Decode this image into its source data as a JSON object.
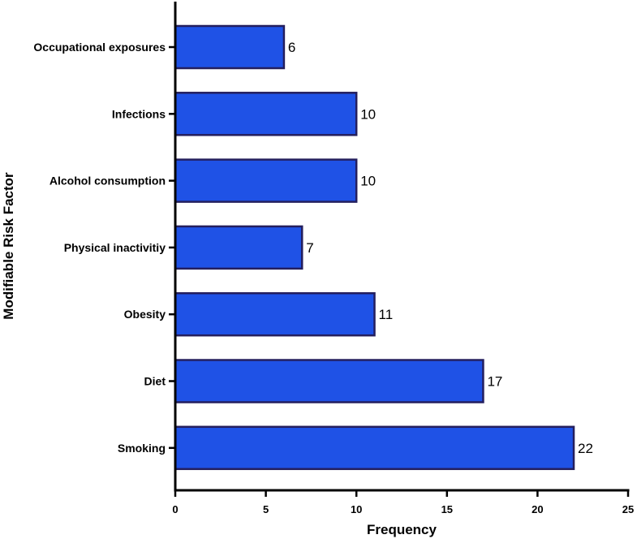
{
  "chart_data": {
    "type": "bar",
    "orientation": "horizontal",
    "categories": [
      "Occupational exposures",
      "Infections",
      "Alcohol consumption",
      "Physical inactivitiy",
      "Obesity",
      "Diet",
      "Smoking"
    ],
    "values": [
      6,
      10,
      10,
      7,
      11,
      17,
      22
    ],
    "xlabel": "Frequency",
    "ylabel": "Modifiable Risk Factor",
    "xlim": [
      0,
      25
    ],
    "xticks": [
      0,
      5,
      10,
      15,
      20,
      25
    ],
    "grid": false,
    "colors": {
      "bar_fill": "#1f52e6",
      "bar_stroke": "#241f5e",
      "axis": "#000000"
    }
  }
}
